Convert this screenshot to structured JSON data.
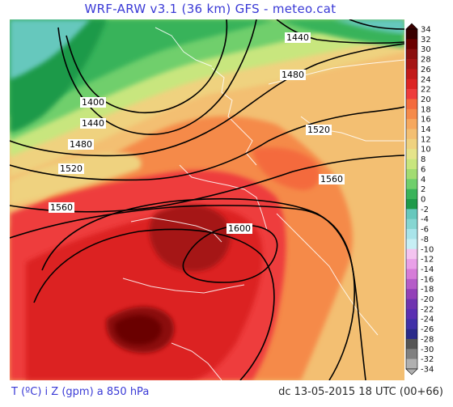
{
  "header": {
    "title": "WRF-ARW v3.1 (36 km) GFS - meteo.cat"
  },
  "footer": {
    "variable": "T (ºC) i Z (gpm) a 850 hPa",
    "valid_time": "dc 13-05-2015 18 UTC (00+66)"
  },
  "colorbar": {
    "labels": [
      "34",
      "32",
      "30",
      "28",
      "26",
      "24",
      "22",
      "20",
      "18",
      "16",
      "14",
      "12",
      "10",
      "8",
      "6",
      "4",
      "2",
      "0",
      "-2",
      "-4",
      "-6",
      "-8",
      "-10",
      "-12",
      "-14",
      "-16",
      "-18",
      "-20",
      "-22",
      "-24",
      "-26",
      "-28",
      "-30",
      "-32",
      "-34"
    ],
    "colors": [
      "#3a0000",
      "#6b0000",
      "#8b1010",
      "#a51515",
      "#c21a1a",
      "#dc2424",
      "#ee3c3c",
      "#f46a3d",
      "#f58a4a",
      "#f6a85e",
      "#f3bf72",
      "#efd27f",
      "#e5e48a",
      "#c8e67e",
      "#a2dc72",
      "#6fcf6c",
      "#39b35a",
      "#1e9a4a",
      "#66c8bd",
      "#86d6d2",
      "#a9e4ea",
      "#c7eff5",
      "#f4c4f0",
      "#e9a0e8",
      "#d67cd8",
      "#b55cc8",
      "#9340b8",
      "#6f34b0",
      "#5a2fb2",
      "#4030a8",
      "#2a2a8a",
      "#555555",
      "#808080",
      "#b0b0b0"
    ]
  },
  "contours": [
    {
      "label": "1400"
    },
    {
      "label": "1440"
    },
    {
      "label": "1480"
    },
    {
      "label": "1520"
    },
    {
      "label": "1560"
    },
    {
      "label": "1600"
    },
    {
      "label": "1440"
    },
    {
      "label": "1480"
    },
    {
      "label": "1520"
    },
    {
      "label": "1560"
    }
  ]
}
